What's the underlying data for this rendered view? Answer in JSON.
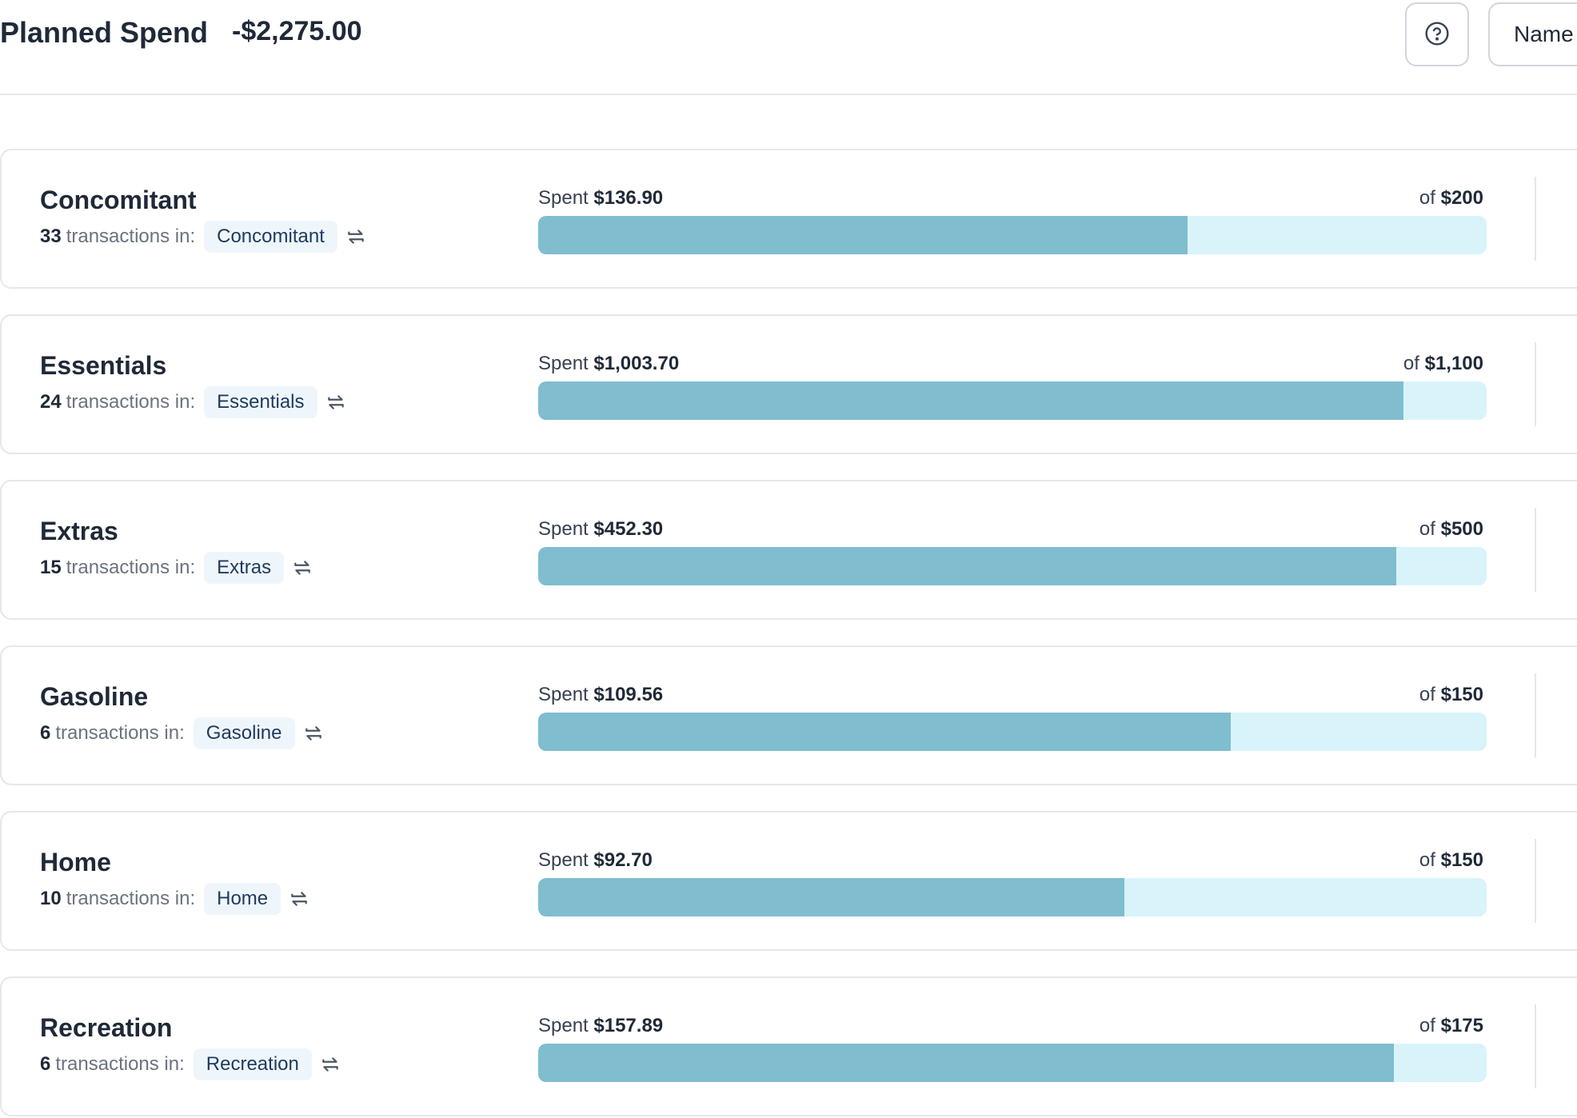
{
  "header": {
    "title": "Planned Spend",
    "total": "-$2,275.00",
    "name_button_label": "Name"
  },
  "categories": [
    {
      "name": "Concomitant",
      "count": "33",
      "sub_text": "transactions in:",
      "chip": "Concomitant",
      "spent_prefix": "Spent",
      "spent": "$136.90",
      "budget_prefix": "of",
      "budget": "$200",
      "progress": 0.6845
    },
    {
      "name": "Essentials",
      "count": "24",
      "sub_text": "transactions in:",
      "chip": "Essentials",
      "spent_prefix": "Spent",
      "spent": "$1,003.70",
      "budget_prefix": "of",
      "budget": "$1,100",
      "progress": 0.9125
    },
    {
      "name": "Extras",
      "count": "15",
      "sub_text": "transactions in:",
      "chip": "Extras",
      "spent_prefix": "Spent",
      "spent": "$452.30",
      "budget_prefix": "of",
      "budget": "$500",
      "progress": 0.9046
    },
    {
      "name": "Gasoline",
      "count": "6",
      "sub_text": "transactions in:",
      "chip": "Gasoline",
      "spent_prefix": "Spent",
      "spent": "$109.56",
      "budget_prefix": "of",
      "budget": "$150",
      "progress": 0.7304
    },
    {
      "name": "Home",
      "count": "10",
      "sub_text": "transactions in:",
      "chip": "Home",
      "spent_prefix": "Spent",
      "spent": "$92.70",
      "budget_prefix": "of",
      "budget": "$150",
      "progress": 0.618
    },
    {
      "name": "Recreation",
      "count": "6",
      "sub_text": "transactions in:",
      "chip": "Recreation",
      "spent_prefix": "Spent",
      "spent": "$157.89",
      "budget_prefix": "of",
      "budget": "$175",
      "progress": 0.9022
    }
  ],
  "colors": {
    "bar_fill": "#7fbdcf",
    "bar_track": "#d8f4fa",
    "chip_bg": "#eff6fb"
  },
  "icons": {
    "help": "question-circle-icon",
    "chip_action": "swap-icon"
  }
}
